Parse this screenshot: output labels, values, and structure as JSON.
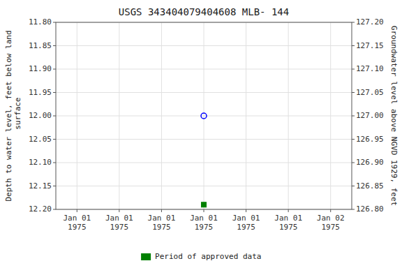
{
  "chart_data": {
    "type": "scatter",
    "title": "USGS 343404079404608 MLB- 144",
    "y_label": "Depth to water level, feet below land\n surface",
    "y2_label": "Groundwater level above NGVD 1929, feet",
    "categories": [
      "Jan 01\n1975",
      "Jan 01\n1975",
      "Jan 01\n1975",
      "Jan 01\n1975",
      "Jan 01\n1975",
      "Jan 01\n1975",
      "Jan 02\n1975"
    ],
    "series": [
      {
        "color": "#0000ff",
        "marker": "open_circle",
        "values": [
          null,
          null,
          null,
          12.0,
          null,
          null,
          null
        ]
      },
      {
        "name": "Period of approved data",
        "color": "#008000",
        "marker": "square",
        "values": [
          null,
          null,
          null,
          12.19,
          null,
          null,
          null
        ]
      }
    ],
    "ylim": [
      12.2,
      11.8
    ],
    "yticks": [
      {
        "value": 11.8,
        "label": "11.80"
      },
      {
        "value": 11.85,
        "label": "11.85"
      },
      {
        "value": 11.9,
        "label": "11.90"
      },
      {
        "value": 11.95,
        "label": "11.95"
      },
      {
        "value": 12.0,
        "label": "12.00"
      },
      {
        "value": 12.05,
        "label": "12.05"
      },
      {
        "value": 12.1,
        "label": "12.10"
      },
      {
        "value": 12.15,
        "label": "12.15"
      },
      {
        "value": 12.2,
        "label": "12.20"
      }
    ],
    "y2lim": [
      126.8,
      127.2
    ],
    "y2ticks": [
      {
        "value": 127.2,
        "label": "127.20"
      },
      {
        "value": 127.15,
        "label": "127.15"
      },
      {
        "value": 127.1,
        "label": "127.10"
      },
      {
        "value": 127.05,
        "label": "127.05"
      },
      {
        "value": 127.0,
        "label": "127.00"
      },
      {
        "value": 126.95,
        "label": "126.95"
      },
      {
        "value": 126.9,
        "label": "126.90"
      },
      {
        "value": 126.85,
        "label": "126.85"
      },
      {
        "value": 126.8,
        "label": "126.80"
      }
    ],
    "grid": true,
    "legend": "bottom"
  }
}
